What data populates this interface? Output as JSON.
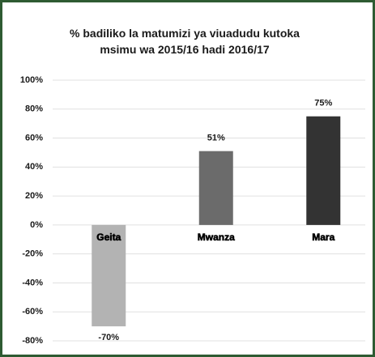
{
  "chart_data": {
    "type": "bar",
    "title": "% badiliko la matumizi ya viuadudu kutoka msimu wa 2015/16 hadi 2016/17",
    "categories": [
      "Geita",
      "Mwanza",
      "Mara"
    ],
    "values": [
      -70,
      51,
      75
    ],
    "value_labels": [
      "-70%",
      "51%",
      "75%"
    ],
    "colors": [
      "#b3b3b3",
      "#6b6b6b",
      "#333333"
    ],
    "ylim": [
      -80,
      100
    ],
    "yticks": [
      {
        "value": -80,
        "label": "-80%"
      },
      {
        "value": -60,
        "label": "-60%"
      },
      {
        "value": -40,
        "label": "-40%"
      },
      {
        "value": -20,
        "label": "-20%"
      },
      {
        "value": 0,
        "label": "0%"
      },
      {
        "value": 20,
        "label": "20%"
      },
      {
        "value": 40,
        "label": "40%"
      },
      {
        "value": 60,
        "label": "60%"
      },
      {
        "value": 80,
        "label": "80%"
      },
      {
        "value": 100,
        "label": "100%"
      }
    ],
    "grid": true
  }
}
